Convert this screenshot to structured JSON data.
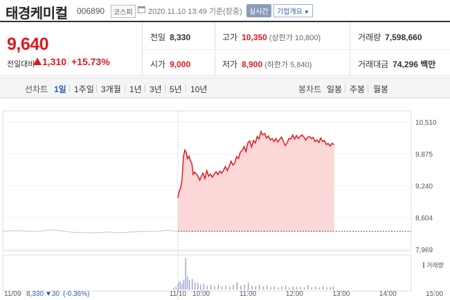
{
  "header": {
    "name": "태경케미컬",
    "code": "006890",
    "market": "코스피",
    "datetime": "2020.11.10 13:49 기준(장중)",
    "realtime": "실시간",
    "company_button": "기업개요"
  },
  "quote": {
    "price": "9,640",
    "change_label": "전일대비",
    "change": "1,310",
    "change_pct": "+15.73%",
    "prev_close_label": "전일",
    "prev_close": "8,330",
    "high_label": "고가",
    "high": "10,350",
    "upper_limit": "(상한가 10,800)",
    "volume_label": "거래량",
    "volume": "7,598,660",
    "open_label": "시가",
    "open": "9,000",
    "low_label": "저가",
    "low": "8,900",
    "lower_limit": "(하한가 5,840)",
    "amount_label": "거래대금",
    "amount": "74,296 백만"
  },
  "tabs": {
    "line_label": "선차트",
    "line": [
      "1일",
      "1주일",
      "3개월",
      "1년",
      "3년",
      "5년",
      "10년"
    ],
    "selected": "1일",
    "candle_label": "봉차트",
    "candle": [
      "일봉",
      "주봉",
      "월봉"
    ]
  },
  "colors": {
    "up": "#e2171d",
    "down": "#2a5aa8",
    "area": "#fbd7d8",
    "prev_line": "#cfcfcf"
  },
  "chart_data": {
    "type": "area",
    "ylim": [
      7969,
      10510
    ],
    "y_ticks": [
      "10,510",
      "9,875",
      "9,240",
      "8,604",
      "7,969"
    ],
    "x_ticks": [
      "11/10",
      "10:00",
      "11:00",
      "12:00",
      "13:00",
      "14:00",
      "15:00"
    ],
    "baseline": 8330,
    "volume_legend": "거래량",
    "prev_day": {
      "label": "11/09",
      "close": "8,330",
      "change": "▼30",
      "change_pct": "(-0.36%)"
    },
    "series": [
      {
        "values": [
          [
            0.0,
            9000
          ],
          [
            0.03,
            9130
          ],
          [
            0.06,
            9200
          ],
          [
            0.09,
            9350
          ],
          [
            0.12,
            9810
          ],
          [
            0.15,
            9950
          ],
          [
            0.18,
            9900
          ],
          [
            0.21,
            9780
          ],
          [
            0.24,
            9830
          ],
          [
            0.27,
            9740
          ],
          [
            0.3,
            9680
          ],
          [
            0.33,
            9460
          ],
          [
            0.36,
            9510
          ],
          [
            0.4,
            9470
          ],
          [
            0.43,
            9430
          ],
          [
            0.47,
            9350
          ],
          [
            0.5,
            9420
          ],
          [
            0.54,
            9490
          ],
          [
            0.58,
            9380
          ],
          [
            0.62,
            9540
          ],
          [
            0.66,
            9430
          ],
          [
            0.7,
            9470
          ],
          [
            0.74,
            9410
          ],
          [
            0.78,
            9470
          ],
          [
            0.82,
            9520
          ],
          [
            0.86,
            9460
          ],
          [
            0.9,
            9530
          ],
          [
            0.94,
            9490
          ],
          [
            0.98,
            9550
          ],
          [
            1.02,
            9620
          ],
          [
            1.06,
            9540
          ],
          [
            1.1,
            9620
          ],
          [
            1.14,
            9730
          ],
          [
            1.18,
            9650
          ],
          [
            1.22,
            9690
          ],
          [
            1.26,
            9820
          ],
          [
            1.3,
            9780
          ],
          [
            1.34,
            9910
          ],
          [
            1.38,
            9940
          ],
          [
            1.42,
            10020
          ],
          [
            1.46,
            9920
          ],
          [
            1.5,
            10090
          ],
          [
            1.54,
            10130
          ],
          [
            1.58,
            10010
          ],
          [
            1.62,
            10140
          ],
          [
            1.66,
            10090
          ],
          [
            1.7,
            10220
          ],
          [
            1.74,
            10170
          ],
          [
            1.78,
            10320
          ],
          [
            1.82,
            10250
          ],
          [
            1.86,
            10280
          ],
          [
            1.9,
            10190
          ],
          [
            1.94,
            10230
          ],
          [
            1.98,
            10150
          ],
          [
            2.02,
            10180
          ],
          [
            2.06,
            10120
          ],
          [
            2.1,
            10180
          ],
          [
            2.14,
            10110
          ],
          [
            2.18,
            10160
          ],
          [
            2.22,
            10210
          ],
          [
            2.26,
            10130
          ],
          [
            2.3,
            10040
          ],
          [
            2.34,
            10090
          ],
          [
            2.38,
            10180
          ],
          [
            2.42,
            10170
          ],
          [
            2.46,
            10250
          ],
          [
            2.5,
            10170
          ],
          [
            2.54,
            10240
          ],
          [
            2.58,
            10180
          ],
          [
            2.62,
            10220
          ],
          [
            2.66,
            10250
          ],
          [
            2.7,
            10210
          ],
          [
            2.74,
            10150
          ],
          [
            2.78,
            10200
          ],
          [
            2.82,
            10220
          ],
          [
            2.86,
            10180
          ],
          [
            2.9,
            10200
          ],
          [
            2.94,
            10120
          ],
          [
            2.98,
            10150
          ],
          [
            3.02,
            10100
          ],
          [
            3.06,
            10190
          ],
          [
            3.1,
            10120
          ],
          [
            3.14,
            10140
          ],
          [
            3.18,
            10060
          ],
          [
            3.22,
            10080
          ],
          [
            3.26,
            10030
          ],
          [
            3.3,
            10080
          ],
          [
            3.35,
            10060
          ]
        ]
      },
      {
        "name": "11/09",
        "values": [
          [
            -3.75,
            8330
          ],
          [
            -3.5,
            8345
          ],
          [
            -3.25,
            8335
          ],
          [
            -3.0,
            8325
          ],
          [
            -2.75,
            8360
          ],
          [
            -2.5,
            8345
          ],
          [
            -2.25,
            8310
          ],
          [
            -2.0,
            8305
          ],
          [
            -1.75,
            8300
          ],
          [
            -1.5,
            8315
          ],
          [
            -1.25,
            8300
          ],
          [
            -1.0,
            8315
          ],
          [
            -0.75,
            8330
          ],
          [
            -0.5,
            8325
          ],
          [
            -0.25,
            8350
          ],
          [
            0.0,
            8330
          ]
        ]
      }
    ],
    "volume": [
      [
        -0.1,
        0.05
      ],
      [
        -0.05,
        0.1
      ],
      [
        0.0,
        0.2
      ],
      [
        0.04,
        0.25
      ],
      [
        0.08,
        0.18
      ],
      [
        0.12,
        0.3
      ],
      [
        0.16,
        0.95
      ],
      [
        0.2,
        0.4
      ],
      [
        0.24,
        0.28
      ],
      [
        0.3,
        0.32
      ],
      [
        0.36,
        0.22
      ],
      [
        0.42,
        0.2
      ],
      [
        0.48,
        0.15
      ],
      [
        0.55,
        0.18
      ],
      [
        0.62,
        0.12
      ],
      [
        0.7,
        0.14
      ],
      [
        0.78,
        0.1
      ],
      [
        0.86,
        0.16
      ],
      [
        0.94,
        0.1
      ],
      [
        1.02,
        0.12
      ],
      [
        1.1,
        0.09
      ],
      [
        1.18,
        0.14
      ],
      [
        1.26,
        0.22
      ],
      [
        1.34,
        0.12
      ],
      [
        1.42,
        0.15
      ],
      [
        1.5,
        0.2
      ],
      [
        1.58,
        0.12
      ],
      [
        1.66,
        0.1
      ],
      [
        1.74,
        0.14
      ],
      [
        1.82,
        0.09
      ],
      [
        1.9,
        0.11
      ],
      [
        1.98,
        0.08
      ],
      [
        2.06,
        0.1
      ],
      [
        2.14,
        0.07
      ],
      [
        2.22,
        0.09
      ],
      [
        2.3,
        0.12
      ],
      [
        2.38,
        0.07
      ],
      [
        2.46,
        0.1
      ],
      [
        2.54,
        0.08
      ],
      [
        2.62,
        0.09
      ],
      [
        2.7,
        0.07
      ],
      [
        2.78,
        0.14
      ],
      [
        2.86,
        0.08
      ],
      [
        2.94,
        0.09
      ],
      [
        3.02,
        0.07
      ],
      [
        3.1,
        0.1
      ],
      [
        3.18,
        0.08
      ],
      [
        3.26,
        0.07
      ],
      [
        3.32,
        0.09
      ]
    ]
  }
}
